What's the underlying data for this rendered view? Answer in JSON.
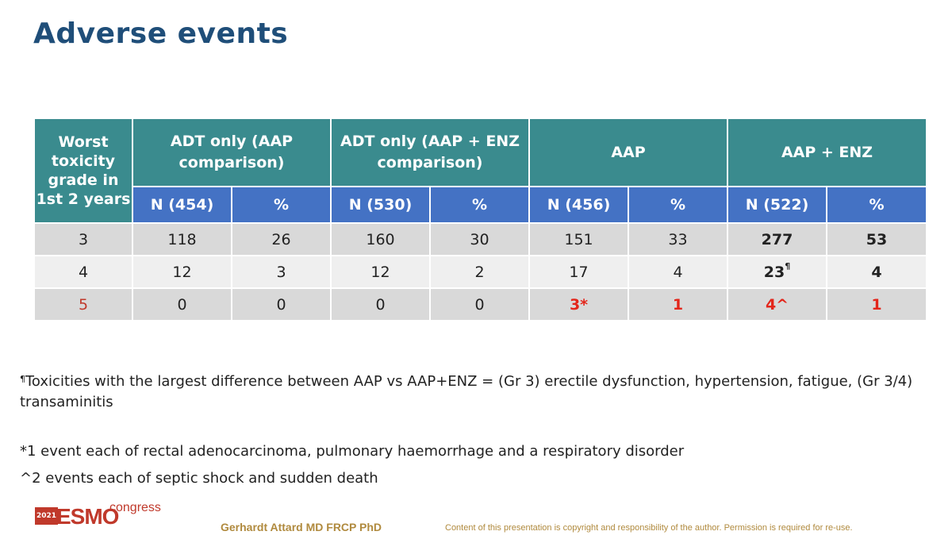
{
  "slide": {
    "title": "Adverse events"
  },
  "table": {
    "corner_header": "Worst toxicity grade in 1st 2 years",
    "groups": [
      "ADT only (AAP comparison)",
      "ADT only (AAP + ENZ comparison)",
      "AAP",
      "AAP + ENZ"
    ],
    "subheaders": [
      "N (454)",
      "%",
      "N (530)",
      "%",
      "N (456)",
      "%",
      "N (522)",
      "%"
    ],
    "rows": [
      {
        "grade": "3",
        "cells": [
          "118",
          "26",
          "160",
          "30",
          "151",
          "33",
          "277",
          "53"
        ]
      },
      {
        "grade": "4",
        "cells": [
          "12",
          "3",
          "12",
          "2",
          "17",
          "4",
          "23",
          "4"
        ],
        "mark": "¶"
      },
      {
        "grade": "5",
        "cells": [
          "0",
          "0",
          "0",
          "0",
          "3*",
          "1",
          "4^",
          "1"
        ]
      }
    ]
  },
  "notes": {
    "pilcrow_mark": "¶",
    "note1": "Toxicities with the largest difference between AAP vs AAP+ENZ = (Gr 3) erectile dysfunction, hypertension, fatigue, (Gr 3/4) transaminitis",
    "note2": "*1 event each of rectal adenocarcinoma, pulmonary haemorrhage and a respiratory disorder",
    "note3": "^2 events each of septic shock and sudden death"
  },
  "footer": {
    "logo_year": "2021",
    "logo_text": "ESMO",
    "logo_sub": "congress",
    "author": "Gerhardt Attard MD FRCP PhD",
    "copyright": "Content of this presentation is copyright and responsibility of the author. Permission is required for re-use."
  },
  "colors": {
    "title": "#1f4e79",
    "header_teal": "#3a8b8e",
    "header_blue": "#4472c4",
    "row_grey": "#d9d9d9",
    "accent_red": "#c0392b"
  }
}
